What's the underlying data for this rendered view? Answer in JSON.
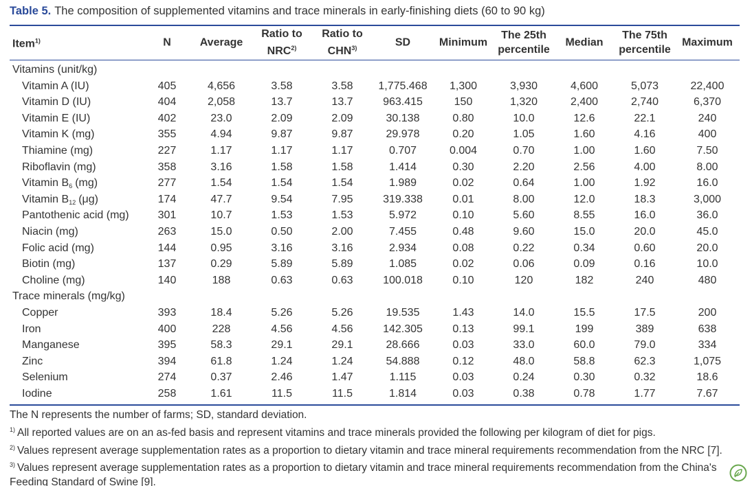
{
  "title": [
    {
      "t": "Table 5.",
      "s": "label"
    },
    {
      "t": "The composition of supplemented vitamins and trace minerals in early-finishing diets (60 to 90 kg)"
    }
  ],
  "table": {
    "header": [
      [
        [
          {
            "t": "Item"
          },
          {
            "t": "1)",
            "s": "sup"
          }
        ]
      ],
      [
        "N"
      ],
      [
        "Average"
      ],
      [
        "Ratio to",
        [
          {
            "t": "NRC"
          },
          {
            "t": "2)",
            "s": "sup"
          }
        ]
      ],
      [
        "Ratio to",
        [
          {
            "t": "CHN"
          },
          {
            "t": "3)",
            "s": "sup"
          }
        ]
      ],
      [
        "SD"
      ],
      [
        "Minimum"
      ],
      [
        "The 25th",
        "percentile"
      ],
      [
        "Median"
      ],
      [
        "The 75th",
        "percentile"
      ],
      [
        "Maximum"
      ]
    ],
    "groups": [
      {
        "title": "Vitamins (unit/kg)",
        "rows": [
          {
            "item": "Vitamin A (IU)",
            "values": [
              "405",
              "4,656",
              "3.58",
              "3.58",
              "1,775.468",
              "1,300",
              "3,930",
              "4,600",
              "5,073",
              "22,400"
            ]
          },
          {
            "item": "Vitamin D (IU)",
            "values": [
              "404",
              "2,058",
              "13.7",
              "13.7",
              "963.415",
              "150",
              "1,320",
              "2,400",
              "2,740",
              "6,370"
            ]
          },
          {
            "item": "Vitamin E (IU)",
            "values": [
              "402",
              "23.0",
              "2.09",
              "2.09",
              "30.138",
              "0.80",
              "10.0",
              "12.6",
              "22.1",
              "240"
            ]
          },
          {
            "item": "Vitamin K (mg)",
            "values": [
              "355",
              "4.94",
              "9.87",
              "9.87",
              "29.978",
              "0.20",
              "1.05",
              "1.60",
              "4.16",
              "400"
            ]
          },
          {
            "item": "Thiamine (mg)",
            "values": [
              "227",
              "1.17",
              "1.17",
              "1.17",
              "0.707",
              "0.004",
              "0.70",
              "1.00",
              "1.60",
              "7.50"
            ]
          },
          {
            "item": "Riboflavin (mg)",
            "values": [
              "358",
              "3.16",
              "1.58",
              "1.58",
              "1.414",
              "0.30",
              "2.20",
              "2.56",
              "4.00",
              "8.00"
            ]
          },
          {
            "item": [
              {
                "t": "Vitamin B"
              },
              {
                "t": "6",
                "s": "sub"
              },
              {
                "t": "(mg)"
              }
            ],
            "values": [
              "277",
              "1.54",
              "1.54",
              "1.54",
              "1.989",
              "0.02",
              "0.64",
              "1.00",
              "1.92",
              "16.0"
            ]
          },
          {
            "item": [
              {
                "t": "Vitamin B"
              },
              {
                "t": "12",
                "s": "sub"
              },
              {
                "t": "(μg)"
              }
            ],
            "values": [
              "174",
              "47.7",
              "9.54",
              "7.95",
              "319.338",
              "0.01",
              "8.00",
              "12.0",
              "18.3",
              "3,000"
            ]
          },
          {
            "item": "Pantothenic acid (mg)",
            "values": [
              "301",
              "10.7",
              "1.53",
              "1.53",
              "5.972",
              "0.10",
              "5.60",
              "8.55",
              "16.0",
              "36.0"
            ]
          },
          {
            "item": "Niacin (mg)",
            "values": [
              "263",
              "15.0",
              "0.50",
              "2.00",
              "7.455",
              "0.48",
              "9.60",
              "15.0",
              "20.0",
              "45.0"
            ]
          },
          {
            "item": "Folic acid (mg)",
            "values": [
              "144",
              "0.95",
              "3.16",
              "3.16",
              "2.934",
              "0.08",
              "0.22",
              "0.34",
              "0.60",
              "20.0"
            ]
          },
          {
            "item": "Biotin (mg)",
            "values": [
              "137",
              "0.29",
              "5.89",
              "5.89",
              "1.085",
              "0.02",
              "0.06",
              "0.09",
              "0.16",
              "10.0"
            ]
          },
          {
            "item": "Choline (mg)",
            "values": [
              "140",
              "188",
              "0.63",
              "0.63",
              "100.018",
              "0.10",
              "120",
              "182",
              "240",
              "480"
            ]
          }
        ]
      },
      {
        "title": "Trace minerals (mg/kg)",
        "rows": [
          {
            "item": "Copper",
            "values": [
              "393",
              "18.4",
              "5.26",
              "5.26",
              "19.535",
              "1.43",
              "14.0",
              "15.5",
              "17.5",
              "200"
            ]
          },
          {
            "item": "Iron",
            "values": [
              "400",
              "228",
              "4.56",
              "4.56",
              "142.305",
              "0.13",
              "99.1",
              "199",
              "389",
              "638"
            ]
          },
          {
            "item": "Manganese",
            "values": [
              "395",
              "58.3",
              "29.1",
              "29.1",
              "28.666",
              "0.03",
              "33.0",
              "60.0",
              "79.0",
              "334"
            ]
          },
          {
            "item": "Zinc",
            "values": [
              "394",
              "61.8",
              "1.24",
              "1.24",
              "54.888",
              "0.12",
              "48.0",
              "58.8",
              "62.3",
              "1,075"
            ]
          },
          {
            "item": "Selenium",
            "values": [
              "274",
              "0.37",
              "2.46",
              "1.47",
              "1.115",
              "0.03",
              "0.24",
              "0.30",
              "0.32",
              "18.6"
            ]
          },
          {
            "item": "Iodine",
            "values": [
              "258",
              "1.61",
              "11.5",
              "11.5",
              "1.814",
              "0.03",
              "0.38",
              "0.78",
              "1.77",
              "7.67"
            ]
          }
        ]
      }
    ]
  },
  "notes": [
    "The N represents the number of farms; SD, standard deviation.",
    [
      {
        "t": "1)",
        "s": "sup"
      },
      {
        "t": "All reported values are on an as-fed basis and represent vitamins and trace minerals provided the following per kilogram of diet for pigs."
      }
    ],
    [
      {
        "t": "2)",
        "s": "sup"
      },
      {
        "t": "Values represent average supplementation rates as a proportion to dietary vitamin and trace mineral requirements recommendation from the NRC [7]."
      }
    ],
    [
      {
        "t": "3)",
        "s": "sup"
      },
      {
        "t": "Values represent average supplementation rates as a proportion to dietary vitamin and trace mineral requirements recommendation from the China's Feeding Standard of Swine [9]."
      }
    ]
  ]
}
